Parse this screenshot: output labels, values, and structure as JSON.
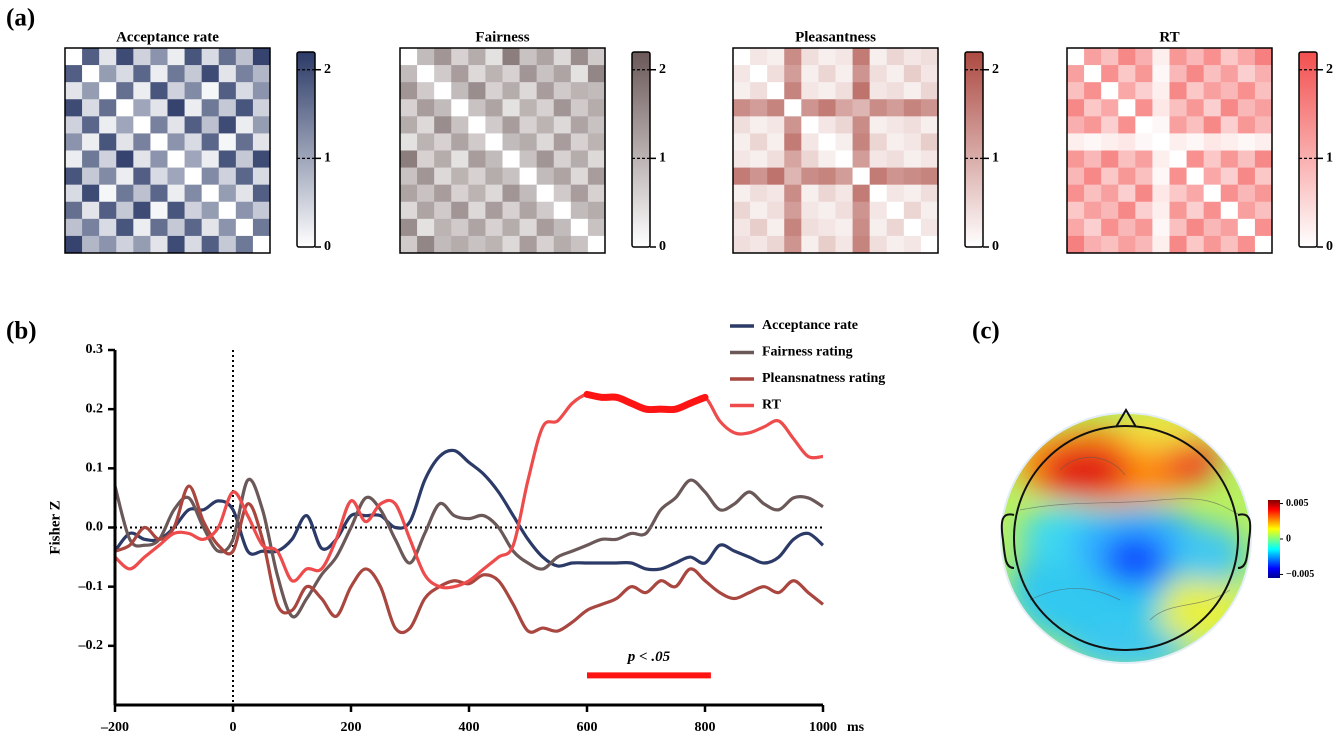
{
  "panel_labels": [
    "(a)",
    "(b)",
    "(c)"
  ],
  "chart_data": [
    {
      "type": "heatmap",
      "title": "Acceptance rate",
      "color": "#2b3a67",
      "clim": [
        0,
        2.2
      ],
      "cticks": [
        0,
        1,
        2
      ],
      "matrix": [
        [
          0,
          1.8,
          0.3,
          2.0,
          0.5,
          1.2,
          0.2,
          1.9,
          0.4,
          1.6,
          0.7,
          2.1
        ],
        [
          1.8,
          0,
          1.1,
          0.4,
          1.7,
          0.2,
          1.5,
          0.6,
          2.0,
          0.3,
          1.4,
          0.8
        ],
        [
          0.3,
          1.1,
          0,
          1.6,
          0.2,
          1.9,
          0.5,
          1.3,
          0.1,
          1.8,
          0.4,
          1.2
        ],
        [
          2.0,
          0.4,
          1.6,
          0,
          1.0,
          0.3,
          2.1,
          0.2,
          1.5,
          0.6,
          1.9,
          0.5
        ],
        [
          0.5,
          1.7,
          0.2,
          1.0,
          0,
          1.4,
          0.3,
          1.8,
          0.7,
          2.0,
          0.2,
          1.1
        ],
        [
          1.2,
          0.2,
          1.9,
          0.3,
          1.4,
          0,
          1.2,
          0.4,
          1.7,
          0.1,
          1.6,
          0.3
        ],
        [
          0.2,
          1.5,
          0.5,
          2.1,
          0.3,
          1.2,
          0,
          1.0,
          0.2,
          1.9,
          0.6,
          2.0
        ],
        [
          1.9,
          0.6,
          1.3,
          0.2,
          1.8,
          0.4,
          1.0,
          0,
          1.3,
          0.5,
          1.7,
          0.4
        ],
        [
          0.4,
          2.0,
          0.1,
          1.5,
          0.7,
          1.7,
          0.2,
          1.3,
          0,
          1.1,
          0.3,
          1.8
        ],
        [
          1.6,
          0.3,
          1.8,
          0.6,
          2.0,
          0.1,
          1.9,
          0.5,
          1.1,
          0,
          1.2,
          0.6
        ],
        [
          0.7,
          1.4,
          0.4,
          1.9,
          0.2,
          1.6,
          0.6,
          1.7,
          0.3,
          1.2,
          0,
          1.5
        ],
        [
          2.1,
          0.8,
          1.2,
          0.5,
          1.1,
          0.3,
          2.0,
          0.4,
          1.8,
          0.6,
          1.5,
          0
        ]
      ]
    },
    {
      "type": "heatmap",
      "title": "Fairness",
      "color": "#6b5858",
      "clim": [
        0,
        2.2
      ],
      "cticks": [
        0,
        1,
        2
      ],
      "matrix": [
        [
          0,
          0.9,
          1.4,
          0.6,
          1.1,
          0.4,
          1.7,
          0.8,
          1.2,
          0.5,
          1.5,
          0.7
        ],
        [
          0.9,
          0,
          0.7,
          1.3,
          0.5,
          1.0,
          0.6,
          1.4,
          0.8,
          1.2,
          0.4,
          1.6
        ],
        [
          1.4,
          0.7,
          0,
          0.9,
          1.5,
          0.6,
          1.1,
          0.5,
          1.3,
          0.7,
          1.0,
          0.9
        ],
        [
          0.6,
          1.3,
          0.9,
          0,
          0.8,
          1.2,
          0.4,
          1.0,
          0.6,
          1.4,
          0.7,
          1.1
        ],
        [
          1.1,
          0.5,
          1.5,
          0.8,
          0,
          0.7,
          1.3,
          0.6,
          1.0,
          0.5,
          1.2,
          0.8
        ],
        [
          0.4,
          1.0,
          0.6,
          1.2,
          0.7,
          0,
          0.9,
          1.1,
          0.5,
          1.3,
          0.6,
          1.0
        ],
        [
          1.7,
          0.6,
          1.1,
          0.4,
          1.3,
          0.9,
          0,
          0.8,
          1.4,
          0.6,
          1.1,
          0.5
        ],
        [
          0.8,
          1.4,
          0.5,
          1.0,
          0.6,
          1.1,
          0.8,
          0,
          0.9,
          1.2,
          0.5,
          1.3
        ],
        [
          1.2,
          0.8,
          1.3,
          0.6,
          1.0,
          0.5,
          1.4,
          0.9,
          0,
          0.7,
          1.3,
          0.6
        ],
        [
          0.5,
          1.2,
          0.7,
          1.4,
          0.5,
          1.3,
          0.6,
          1.2,
          0.7,
          0,
          0.9,
          1.1
        ],
        [
          1.5,
          0.4,
          1.0,
          0.7,
          1.2,
          0.6,
          1.1,
          0.5,
          1.3,
          0.9,
          0,
          0.8
        ],
        [
          0.7,
          1.6,
          0.9,
          1.1,
          0.8,
          1.0,
          0.5,
          1.3,
          0.6,
          1.1,
          0.8,
          0
        ]
      ]
    },
    {
      "type": "heatmap",
      "title": "Pleasantness",
      "color": "#ac4a42",
      "clim": [
        0,
        2.2
      ],
      "cticks": [
        0,
        1,
        2
      ],
      "matrix": [
        [
          0,
          0.3,
          0.2,
          1.4,
          0.4,
          0.2,
          0.3,
          1.6,
          0.2,
          0.5,
          0.3,
          0.4
        ],
        [
          0.3,
          0,
          0.4,
          1.2,
          0.2,
          0.5,
          0.2,
          1.3,
          0.4,
          0.2,
          0.6,
          0.3
        ],
        [
          0.2,
          0.4,
          0,
          1.5,
          0.3,
          0.2,
          0.4,
          1.7,
          0.3,
          0.4,
          0.2,
          0.5
        ],
        [
          1.4,
          1.2,
          1.5,
          0,
          1.3,
          1.6,
          1.1,
          0.9,
          1.4,
          1.2,
          1.5,
          1.3
        ],
        [
          0.4,
          0.2,
          0.3,
          1.3,
          0,
          0.3,
          0.5,
          1.4,
          0.2,
          0.3,
          0.4,
          0.2
        ],
        [
          0.2,
          0.5,
          0.2,
          1.6,
          0.3,
          0,
          0.2,
          1.5,
          0.5,
          0.2,
          0.3,
          0.6
        ],
        [
          0.3,
          0.2,
          0.4,
          1.1,
          0.5,
          0.2,
          0,
          1.2,
          0.3,
          0.4,
          0.2,
          0.3
        ],
        [
          1.6,
          1.3,
          1.7,
          0.9,
          1.4,
          1.5,
          1.2,
          0,
          1.6,
          1.3,
          1.4,
          1.5
        ],
        [
          0.2,
          0.4,
          0.3,
          1.4,
          0.2,
          0.5,
          0.3,
          1.6,
          0,
          0.3,
          0.2,
          0.4
        ],
        [
          0.5,
          0.2,
          0.4,
          1.2,
          0.3,
          0.2,
          0.4,
          1.3,
          0.3,
          0,
          0.5,
          0.2
        ],
        [
          0.3,
          0.6,
          0.2,
          1.5,
          0.4,
          0.3,
          0.2,
          1.4,
          0.2,
          0.5,
          0,
          0.3
        ],
        [
          0.4,
          0.3,
          0.5,
          1.3,
          0.2,
          0.6,
          0.3,
          1.5,
          0.4,
          0.2,
          0.3,
          0
        ]
      ]
    },
    {
      "type": "heatmap",
      "title": "RT",
      "color": "#f2504f",
      "clim": [
        0,
        2.2
      ],
      "cticks": [
        0,
        1,
        2
      ],
      "matrix": [
        [
          0,
          1.2,
          0.8,
          1.5,
          1.0,
          0.2,
          1.3,
          0.9,
          1.4,
          0.7,
          1.1,
          1.6
        ],
        [
          1.2,
          0,
          1.4,
          0.7,
          1.3,
          0.1,
          0.9,
          1.5,
          0.8,
          1.2,
          0.6,
          1.0
        ],
        [
          0.8,
          1.4,
          0,
          1.1,
          0.6,
          0.2,
          1.5,
          0.7,
          1.2,
          0.9,
          1.4,
          0.8
        ],
        [
          1.5,
          0.7,
          1.1,
          0,
          1.4,
          0.3,
          0.8,
          1.3,
          0.6,
          1.5,
          0.9,
          1.2
        ],
        [
          1.0,
          1.3,
          0.6,
          1.4,
          0,
          0.1,
          1.2,
          0.8,
          1.5,
          0.6,
          1.3,
          0.9
        ],
        [
          0.2,
          0.1,
          0.2,
          0.3,
          0.1,
          0,
          0.2,
          0.1,
          0.3,
          0.2,
          0.1,
          0.2
        ],
        [
          1.3,
          0.9,
          1.5,
          0.8,
          1.2,
          0.2,
          0,
          1.4,
          0.7,
          1.3,
          0.8,
          1.5
        ],
        [
          0.9,
          1.5,
          0.7,
          1.3,
          0.8,
          0.1,
          1.4,
          0,
          1.1,
          0.6,
          1.5,
          0.7
        ],
        [
          1.4,
          0.8,
          1.2,
          0.6,
          1.5,
          0.3,
          0.7,
          1.1,
          0,
          1.4,
          0.9,
          1.3
        ],
        [
          0.7,
          1.2,
          0.9,
          1.5,
          0.6,
          0.2,
          1.3,
          0.6,
          1.4,
          0,
          1.2,
          0.8
        ],
        [
          1.1,
          0.6,
          1.4,
          0.9,
          1.3,
          0.1,
          0.8,
          1.5,
          0.9,
          1.2,
          0,
          1.4
        ],
        [
          1.6,
          1.0,
          0.8,
          1.2,
          0.9,
          0.2,
          1.5,
          0.7,
          1.3,
          0.8,
          1.4,
          0
        ]
      ]
    },
    {
      "type": "line",
      "ylabel": "Fisher Z",
      "x_unit": "ms",
      "legend": "top-right",
      "xlim": [
        -200,
        1000
      ],
      "ylim": [
        -0.3,
        0.3
      ],
      "xticks": [
        {
          "value": -200,
          "label": "–200"
        },
        0,
        200,
        400,
        600,
        800,
        1000
      ],
      "yticks": [
        {
          "value": -0.2,
          "label": "–0.2"
        },
        {
          "value": -0.1,
          "label": "–0.1"
        },
        {
          "value": 0,
          "label": "0.0"
        },
        0.1,
        0.2,
        0.3
      ],
      "reference_lines": {
        "x": 0,
        "y": 0
      },
      "significance": {
        "x": [
          600,
          810
        ],
        "y": -0.25,
        "label": "p < .05",
        "color": "#ff1414"
      },
      "x": [
        -200,
        -175,
        -150,
        -125,
        -100,
        -75,
        -50,
        -25,
        0,
        25,
        50,
        75,
        100,
        125,
        150,
        175,
        200,
        225,
        250,
        275,
        300,
        325,
        350,
        375,
        400,
        425,
        450,
        475,
        500,
        525,
        550,
        575,
        600,
        625,
        650,
        675,
        700,
        725,
        750,
        775,
        800,
        825,
        850,
        875,
        900,
        925,
        950,
        975,
        1000
      ],
      "series": [
        {
          "name": "Acceptance rate",
          "color": "#2b3a67",
          "values": [
            -0.04,
            -0.01,
            -0.02,
            -0.02,
            0.0,
            0.03,
            0.03,
            0.045,
            0.03,
            -0.04,
            -0.04,
            -0.04,
            -0.02,
            0.02,
            -0.035,
            -0.02,
            0.02,
            0.02,
            0.02,
            0.0,
            0.01,
            0.08,
            0.12,
            0.13,
            0.11,
            0.09,
            0.06,
            0.02,
            -0.02,
            -0.05,
            -0.065,
            -0.06,
            -0.06,
            -0.06,
            -0.06,
            -0.06,
            -0.07,
            -0.07,
            -0.06,
            -0.05,
            -0.06,
            -0.03,
            -0.04,
            -0.05,
            -0.06,
            -0.05,
            -0.02,
            -0.01,
            -0.03
          ]
        },
        {
          "name": "Fairness rating",
          "color": "#6b5858",
          "values": [
            0.07,
            -0.02,
            -0.03,
            -0.02,
            0.03,
            0.05,
            0.0,
            -0.04,
            -0.02,
            0.08,
            0.03,
            -0.08,
            -0.15,
            -0.12,
            -0.08,
            -0.05,
            0.0,
            0.05,
            0.03,
            -0.02,
            -0.06,
            -0.01,
            0.04,
            0.02,
            0.015,
            0.02,
            0.0,
            -0.04,
            -0.06,
            -0.07,
            -0.05,
            -0.04,
            -0.03,
            -0.02,
            -0.02,
            -0.01,
            -0.01,
            0.03,
            0.05,
            0.08,
            0.06,
            0.03,
            0.04,
            0.06,
            0.04,
            0.03,
            0.05,
            0.05,
            0.035
          ]
        },
        {
          "name": "Pleansnatness rating",
          "color": "#a9463f",
          "values": [
            -0.04,
            -0.03,
            0.0,
            -0.02,
            0.0,
            0.07,
            0.01,
            -0.03,
            -0.04,
            0.04,
            -0.02,
            -0.13,
            -0.14,
            -0.1,
            -0.12,
            -0.15,
            -0.1,
            -0.07,
            -0.1,
            -0.17,
            -0.17,
            -0.12,
            -0.1,
            -0.09,
            -0.095,
            -0.08,
            -0.09,
            -0.13,
            -0.175,
            -0.17,
            -0.175,
            -0.16,
            -0.14,
            -0.13,
            -0.12,
            -0.1,
            -0.11,
            -0.09,
            -0.1,
            -0.07,
            -0.09,
            -0.11,
            -0.12,
            -0.11,
            -0.1,
            -0.11,
            -0.09,
            -0.11,
            -0.13
          ]
        },
        {
          "name": "RT",
          "color": "#ee4c4c",
          "values": [
            -0.05,
            -0.07,
            -0.05,
            -0.03,
            -0.01,
            -0.01,
            -0.02,
            0.0,
            0.06,
            0.02,
            -0.03,
            -0.04,
            -0.09,
            -0.07,
            -0.07,
            -0.02,
            0.045,
            0.01,
            0.04,
            0.04,
            -0.02,
            -0.08,
            -0.1,
            -0.1,
            -0.09,
            -0.07,
            -0.05,
            -0.03,
            0.08,
            0.17,
            0.18,
            0.21,
            0.225,
            0.22,
            0.22,
            0.21,
            0.2,
            0.2,
            0.2,
            0.21,
            0.22,
            0.18,
            0.16,
            0.16,
            0.17,
            0.18,
            0.15,
            0.12,
            0.12
          ]
        }
      ]
    },
    {
      "type": "topomap",
      "clim": [
        -0.0055,
        0.0055
      ],
      "cticks": [
        0.005,
        0,
        {
          "value": -0.005,
          "label": "−0.005"
        }
      ]
    }
  ]
}
